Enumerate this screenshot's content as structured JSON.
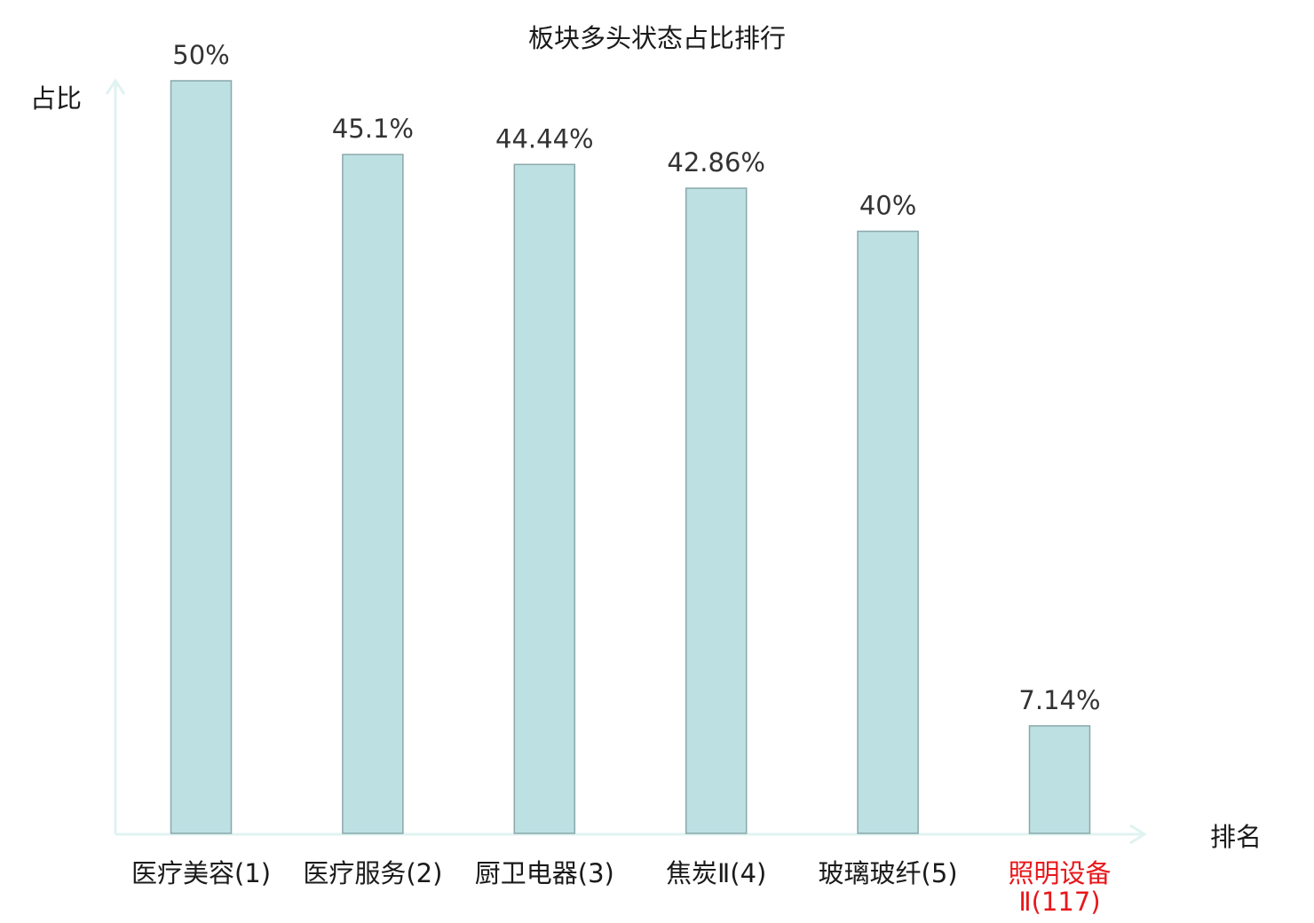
{
  "chart_data": {
    "type": "bar",
    "title": "板块多头状态占比排行",
    "xlabel": "排名",
    "ylabel": "占比",
    "categories": [
      [
        "医疗美容(1)"
      ],
      [
        "医疗服务(2)"
      ],
      [
        "厨卫电器(3)"
      ],
      [
        "焦炭Ⅱ(4)"
      ],
      [
        "玻璃玻纤(5)"
      ],
      [
        "照明设备",
        "Ⅱ(117)"
      ]
    ],
    "values": [
      50,
      45.1,
      44.44,
      42.86,
      40,
      7.14
    ],
    "value_labels": [
      "50%",
      "45.1%",
      "44.44%",
      "42.86%",
      "40%",
      "7.14%"
    ],
    "highlight_category_index": 5,
    "ylim": [
      0,
      50
    ],
    "grid": false,
    "legend": "none",
    "colors": {
      "bar_fill": "#bde0e3",
      "bar_stroke": "#8aa8ab",
      "axis": "#dff3f1",
      "highlight_text": "#e8171b",
      "text": "#1a1a1a",
      "value_text": "#333333"
    }
  }
}
